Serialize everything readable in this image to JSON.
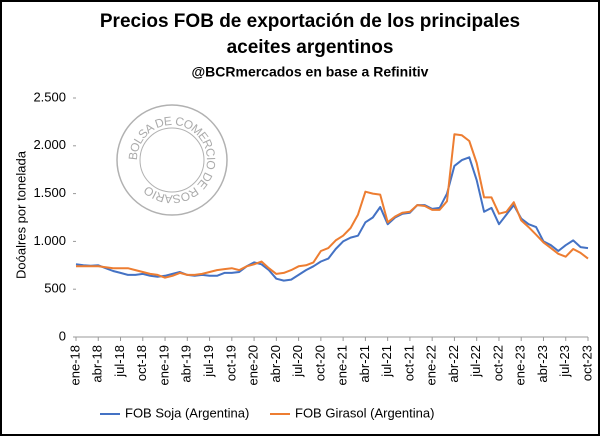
{
  "chart_data": {
    "type": "line",
    "title": [
      "Precios FOB de exportación de los principales",
      "aceites argentinos"
    ],
    "subtitle": "@BCRmercados en base a Refinitiv",
    "watermark": "BOLSA DE COMERCIO DE ROSARIO",
    "y_label": "Doóalres por tonelada",
    "categories": [
      "ene-18",
      null,
      null,
      "abr-18",
      null,
      null,
      "jul-18",
      null,
      null,
      "oct-18",
      null,
      null,
      "ene-19",
      null,
      null,
      "abr-19",
      null,
      null,
      "jul-19",
      null,
      null,
      "oct-19",
      null,
      null,
      "ene-20",
      null,
      null,
      "abr-20",
      null,
      null,
      "jul-20",
      null,
      null,
      "oct-20",
      null,
      null,
      "ene-21",
      null,
      null,
      "abr-21",
      null,
      null,
      "jul-21",
      null,
      null,
      "oct-21",
      null,
      null,
      "ene-22",
      null,
      null,
      "abr-22",
      null,
      null,
      "jul-22",
      null,
      null,
      "oct-22",
      null,
      null,
      "ene-23",
      null,
      null,
      "abr-23",
      null,
      null,
      "jul-23",
      null,
      null,
      "oct-23"
    ],
    "series": [
      {
        "name": "FOB Soja (Argentina)",
        "color": "#4472c4",
        "values": [
          760,
          750,
          745,
          750,
          720,
          690,
          670,
          650,
          650,
          660,
          640,
          630,
          640,
          660,
          680,
          650,
          640,
          650,
          640,
          640,
          670,
          670,
          680,
          740,
          780,
          760,
          700,
          610,
          590,
          600,
          650,
          700,
          740,
          790,
          820,
          920,
          1000,
          1040,
          1060,
          1200,
          1250,
          1360,
          1180,
          1250,
          1290,
          1300,
          1380,
          1380,
          1340,
          1350,
          1500,
          1790,
          1850,
          1880,
          1640,
          1310,
          1350,
          1180,
          1280,
          1380,
          1240,
          1180,
          1150,
          1000,
          960,
          900,
          960,
          1010,
          940,
          930
        ]
      },
      {
        "name": "FOB Girasol (Argentina)",
        "color": "#ed7d31",
        "values": [
          740,
          740,
          740,
          740,
          730,
          720,
          720,
          720,
          700,
          680,
          660,
          650,
          620,
          640,
          670,
          650,
          650,
          660,
          680,
          700,
          710,
          720,
          700,
          740,
          760,
          790,
          720,
          660,
          670,
          700,
          740,
          750,
          780,
          900,
          930,
          1010,
          1060,
          1140,
          1280,
          1520,
          1500,
          1490,
          1200,
          1260,
          1300,
          1310,
          1380,
          1370,
          1330,
          1330,
          1420,
          2120,
          2110,
          2050,
          1820,
          1460,
          1460,
          1290,
          1310,
          1410,
          1220,
          1150,
          1070,
          990,
          930,
          870,
          840,
          920,
          880,
          820
        ]
      }
    ],
    "ylim": [
      0,
      2500
    ],
    "yticks": [
      0,
      500,
      {
        "value": 1000,
        "label": "1.000"
      },
      {
        "value": 1500,
        "label": "1.500"
      },
      {
        "value": 2000,
        "label": "2.000"
      },
      {
        "value": 2500,
        "label": "2.500"
      }
    ],
    "grid": false,
    "legend": "bottom"
  }
}
